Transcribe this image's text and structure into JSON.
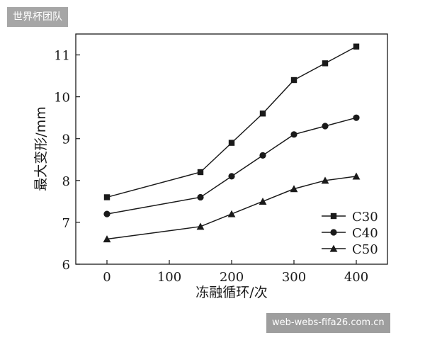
{
  "watermark_top": "世界杯团队",
  "watermark_bottom": "web-webs-fifa26.com.cn",
  "chart_data": {
    "type": "line",
    "title": "",
    "xlabel": "冻融循环/次",
    "ylabel": "最大变形/mm",
    "x": [
      0,
      150,
      200,
      250,
      300,
      350,
      400
    ],
    "xlim": [
      -50,
      450
    ],
    "ylim": [
      6,
      11.5
    ],
    "xticks": [
      0,
      100,
      200,
      300,
      400
    ],
    "yticks": [
      6,
      7,
      8,
      9,
      10,
      11
    ],
    "xtick_labels": [
      "0",
      "100",
      "200",
      "300",
      "400"
    ],
    "ytick_labels": [
      "6",
      "7",
      "8",
      "9",
      "10",
      "11"
    ],
    "grid": false,
    "legend_position": "bottom-right",
    "series": [
      {
        "name": "C30",
        "marker": "square",
        "values": [
          7.6,
          8.2,
          8.9,
          9.6,
          10.4,
          10.8,
          11.2
        ]
      },
      {
        "name": "C40",
        "marker": "circle",
        "values": [
          7.2,
          7.6,
          8.1,
          8.6,
          9.1,
          9.3,
          9.5
        ]
      },
      {
        "name": "C50",
        "marker": "triangle",
        "values": [
          6.6,
          6.9,
          7.2,
          7.5,
          7.8,
          8.0,
          8.1
        ]
      }
    ],
    "line_color": "#1a1a1a"
  }
}
